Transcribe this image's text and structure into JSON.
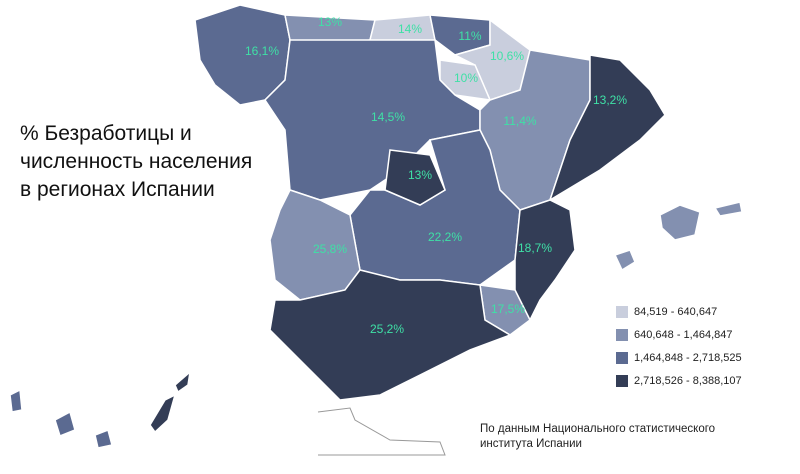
{
  "title_lines": [
    "% Безработицы и",
    "численность населения",
    "в регионах Испании"
  ],
  "regions": [
    {
      "label": "16,1%"
    },
    {
      "label": "13%"
    },
    {
      "label": "14%"
    },
    {
      "label": "11%"
    },
    {
      "label": "10,6%"
    },
    {
      "label": "10%"
    },
    {
      "label": "14,5%"
    },
    {
      "label": "11,4%"
    },
    {
      "label": "13,2%"
    },
    {
      "label": "13%"
    },
    {
      "label": "25,8%"
    },
    {
      "label": "22,2%"
    },
    {
      "label": "18,7%"
    },
    {
      "label": "17,5%"
    },
    {
      "label": "25,2%"
    }
  ],
  "legend": [
    {
      "label": "84,519 - 640,647",
      "color": "#c9cedd"
    },
    {
      "label": "640,648 - 1,464,847",
      "color": "#8390b0"
    },
    {
      "label": "1,464,848 - 2,718,525",
      "color": "#5b6a91"
    },
    {
      "label": "2,718,526 - 8,388,107",
      "color": "#333d56"
    }
  ],
  "source_lines": [
    "По данным Национального статистического",
    "института Испании"
  ]
}
